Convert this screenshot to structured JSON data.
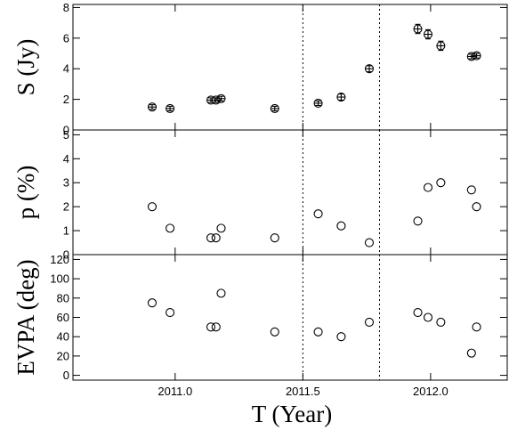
{
  "chart_data": {
    "type": "scatter",
    "xlabel": "T (Year)",
    "xlim": [
      2010.6,
      2012.3
    ],
    "xticks": [
      2011.0,
      2011.5,
      2012.0
    ],
    "xtick_labels": [
      "2011.0",
      "2011.5",
      "2012.0"
    ],
    "vlines": [
      2011.5,
      2011.8
    ],
    "panels": [
      {
        "ylabel": "S (Jy)",
        "ylim": [
          0,
          8.2
        ],
        "yticks": [
          0,
          2,
          4,
          6,
          8
        ],
        "ytick_labels": [
          "0",
          "2",
          "4",
          "6",
          "8"
        ],
        "points": [
          {
            "x": 2010.91,
            "y": 1.5,
            "err": 0.15
          },
          {
            "x": 2010.98,
            "y": 1.4,
            "err": 0.15
          },
          {
            "x": 2011.14,
            "y": 1.95,
            "err": 0.15
          },
          {
            "x": 2011.16,
            "y": 1.95,
            "err": 0.15
          },
          {
            "x": 2011.18,
            "y": 2.05,
            "err": 0.15
          },
          {
            "x": 2011.39,
            "y": 1.4,
            "err": 0.15
          },
          {
            "x": 2011.56,
            "y": 1.75,
            "err": 0.15
          },
          {
            "x": 2011.65,
            "y": 2.15,
            "err": 0.2
          },
          {
            "x": 2011.76,
            "y": 4.0,
            "err": 0.2
          },
          {
            "x": 2011.95,
            "y": 6.6,
            "err": 0.3
          },
          {
            "x": 2011.99,
            "y": 6.25,
            "err": 0.3
          },
          {
            "x": 2012.04,
            "y": 5.5,
            "err": 0.3
          },
          {
            "x": 2012.16,
            "y": 4.8,
            "err": 0.15
          },
          {
            "x": 2012.18,
            "y": 4.85,
            "err": 0.15
          }
        ]
      },
      {
        "ylabel": "p (%)",
        "ylim": [
          0,
          5.2
        ],
        "yticks": [
          0,
          1,
          2,
          3,
          4,
          5
        ],
        "ytick_labels": [
          "0",
          "1",
          "2",
          "3",
          "4",
          "5"
        ],
        "points": [
          {
            "x": 2010.91,
            "y": 2.0
          },
          {
            "x": 2010.98,
            "y": 1.1
          },
          {
            "x": 2011.14,
            "y": 0.7
          },
          {
            "x": 2011.16,
            "y": 0.7
          },
          {
            "x": 2011.18,
            "y": 1.1
          },
          {
            "x": 2011.39,
            "y": 0.7
          },
          {
            "x": 2011.56,
            "y": 1.7
          },
          {
            "x": 2011.65,
            "y": 1.2
          },
          {
            "x": 2011.76,
            "y": 0.5
          },
          {
            "x": 2011.95,
            "y": 1.4
          },
          {
            "x": 2011.99,
            "y": 2.8
          },
          {
            "x": 2012.04,
            "y": 3.0
          },
          {
            "x": 2012.16,
            "y": 2.7
          },
          {
            "x": 2012.18,
            "y": 2.0
          }
        ]
      },
      {
        "ylabel": "EVPA (deg)",
        "ylim": [
          -5,
          125
        ],
        "yticks": [
          0,
          20,
          40,
          60,
          80,
          100,
          120
        ],
        "ytick_labels": [
          "0",
          "20",
          "40",
          "60",
          "80",
          "100",
          "120"
        ],
        "points": [
          {
            "x": 2010.91,
            "y": 75
          },
          {
            "x": 2010.98,
            "y": 65
          },
          {
            "x": 2011.14,
            "y": 50
          },
          {
            "x": 2011.16,
            "y": 50
          },
          {
            "x": 2011.18,
            "y": 85
          },
          {
            "x": 2011.39,
            "y": 45
          },
          {
            "x": 2011.56,
            "y": 45
          },
          {
            "x": 2011.65,
            "y": 40
          },
          {
            "x": 2011.76,
            "y": 55
          },
          {
            "x": 2011.95,
            "y": 65
          },
          {
            "x": 2011.99,
            "y": 60
          },
          {
            "x": 2012.04,
            "y": 55
          },
          {
            "x": 2012.16,
            "y": 23
          },
          {
            "x": 2012.18,
            "y": 50
          }
        ]
      }
    ]
  }
}
